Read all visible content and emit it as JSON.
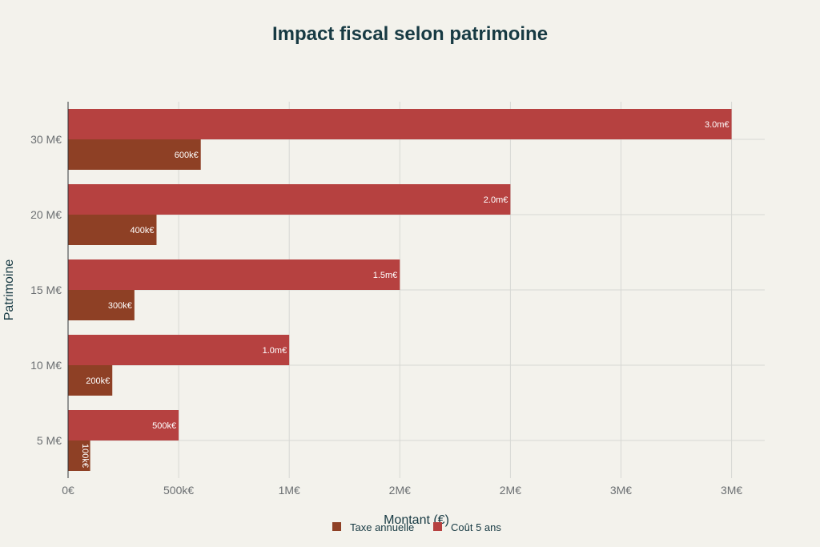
{
  "chart_data": {
    "type": "bar",
    "orientation": "horizontal",
    "title": "Impact fiscal selon patrimoine",
    "xlabel": "Montant (€)",
    "ylabel": "Patrimoine",
    "categories": [
      "5 M€",
      "10 M€",
      "15 M€",
      "20 M€",
      "30 M€"
    ],
    "x_ticks": [
      {
        "value": 0,
        "label": "0€"
      },
      {
        "value": 500000,
        "label": "500k€"
      },
      {
        "value": 1000000,
        "label": "1M€"
      },
      {
        "value": 1500000,
        "label": "2M€"
      },
      {
        "value": 2000000,
        "label": "2M€"
      },
      {
        "value": 2500000,
        "label": "3M€"
      },
      {
        "value": 3000000,
        "label": "3M€"
      }
    ],
    "xlim": [
      0,
      3150000
    ],
    "grid": true,
    "legend_position": "bottom-center",
    "series": [
      {
        "name": "Taxe annuelle",
        "color": "#8e4025",
        "values": [
          100000,
          200000,
          300000,
          400000,
          600000
        ],
        "labels": [
          "100k€",
          "200k€",
          "300k€",
          "400k€",
          "600k€"
        ]
      },
      {
        "name": "Coût 5 ans",
        "color": "#b64140",
        "values": [
          500000,
          1000000,
          1500000,
          2000000,
          3000000
        ],
        "labels": [
          "500k€",
          "1.0m€",
          "1.5m€",
          "2.0m€",
          "3.0m€"
        ]
      }
    ]
  }
}
